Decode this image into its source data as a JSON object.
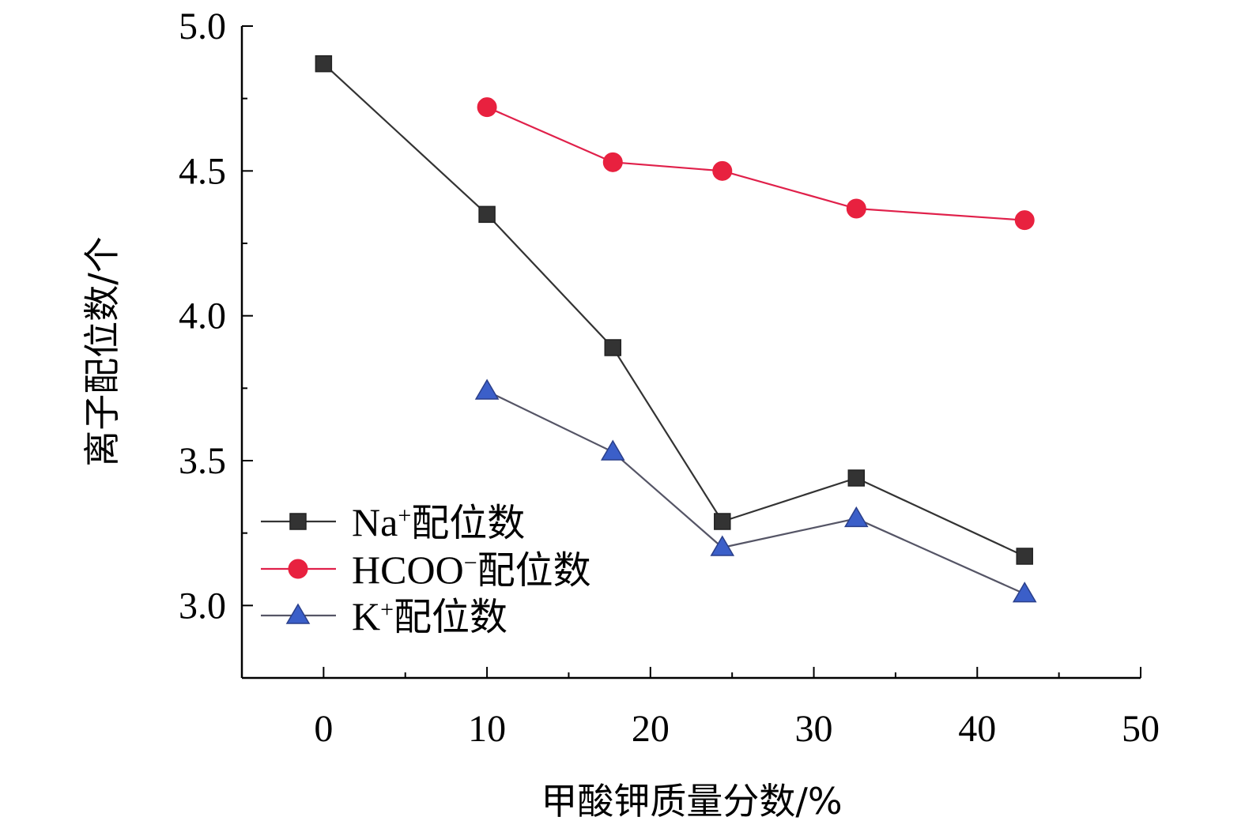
{
  "chart_data": {
    "type": "line",
    "xlabel": "甲酸钾质量分数/%",
    "ylabel": "离子配位数/个",
    "xlim": [
      -5,
      50
    ],
    "ylim": [
      2.75,
      5.0
    ],
    "xticks": [
      0,
      10,
      20,
      30,
      40,
      50
    ],
    "xtick_labels": [
      "0",
      "10",
      "20",
      "30",
      "40",
      "50"
    ],
    "yticks": [
      3.0,
      3.5,
      4.0,
      4.5,
      5.0
    ],
    "ytick_labels": [
      "3.0",
      "3.5",
      "4.0",
      "4.5",
      "5.0"
    ],
    "grid": false,
    "legend_position": "bottom-left",
    "series": [
      {
        "name_parts": [
          "Na",
          "+",
          "配位数"
        ],
        "marker": "square",
        "color": "#333333",
        "line_color": "#333333",
        "x": [
          0,
          10,
          17.7,
          24.4,
          32.6,
          42.9
        ],
        "y": [
          4.87,
          4.35,
          3.89,
          3.29,
          3.44,
          3.17
        ]
      },
      {
        "name_parts": [
          "HCOO",
          "−",
          "配位数"
        ],
        "marker": "circle",
        "color": "#e8213f",
        "line_color": "#e0204a",
        "x": [
          10,
          17.7,
          24.4,
          32.6,
          42.9
        ],
        "y": [
          4.72,
          4.53,
          4.5,
          4.37,
          4.33
        ]
      },
      {
        "name_parts": [
          "K",
          "+",
          "配位数"
        ],
        "marker": "triangle",
        "color": "#3b5fc9",
        "line_color": "#555566",
        "x": [
          10,
          17.7,
          24.4,
          32.6,
          42.9
        ],
        "y": [
          3.74,
          3.53,
          3.2,
          3.3,
          3.04
        ]
      }
    ]
  }
}
